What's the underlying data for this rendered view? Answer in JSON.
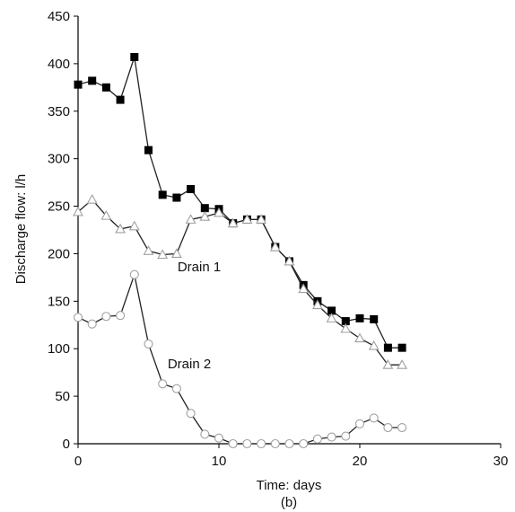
{
  "chart_data": {
    "type": "line",
    "title": "",
    "caption": "(b)",
    "xlabel": "Time: days",
    "ylabel": "Discharge flow: l/h",
    "xlim": [
      0,
      30
    ],
    "ylim": [
      0,
      450
    ],
    "xticks": [
      0,
      10,
      20,
      30
    ],
    "yticks": [
      0,
      50,
      100,
      150,
      200,
      250,
      300,
      350,
      400,
      450
    ],
    "grid": false,
    "legend": "none",
    "annotations": [
      {
        "text": "Drain 1",
        "series": "Drain 1"
      },
      {
        "text": "Drain 2",
        "series": "Drain 2"
      }
    ],
    "series": [
      {
        "name": "",
        "marker": "filled-square",
        "color": "#000000",
        "x": [
          0,
          1,
          2,
          3,
          4,
          5,
          6,
          7,
          8,
          9,
          10,
          11,
          12,
          13,
          14,
          15,
          16,
          17,
          18,
          19,
          20,
          21,
          22,
          23
        ],
        "y": [
          378,
          382,
          375,
          362,
          407,
          309,
          262,
          259,
          268,
          248,
          247,
          232,
          236,
          236,
          207,
          192,
          167,
          150,
          140,
          129,
          132,
          131,
          101,
          101
        ]
      },
      {
        "name": "Drain 1",
        "marker": "open-triangle",
        "color": "#a0a0a0",
        "x": [
          0,
          1,
          2,
          3,
          4,
          5,
          6,
          7,
          8,
          9,
          10,
          11,
          12,
          13,
          14,
          15,
          16,
          17,
          18,
          19,
          20,
          21,
          22,
          23
        ],
        "y": [
          244,
          257,
          240,
          226,
          229,
          203,
          199,
          200,
          236,
          239,
          243,
          232,
          236,
          236,
          207,
          192,
          163,
          146,
          132,
          121,
          111,
          103,
          83,
          83
        ]
      },
      {
        "name": "Drain 2",
        "marker": "open-circle",
        "color": "#a0a0a0",
        "x": [
          0,
          1,
          2,
          3,
          4,
          5,
          6,
          7,
          8,
          9,
          10,
          11,
          12,
          13,
          14,
          15,
          16,
          17,
          18,
          19,
          20,
          21,
          22,
          23
        ],
        "y": [
          133,
          126,
          134,
          135,
          178,
          105,
          63,
          58,
          32,
          10,
          6,
          0,
          0,
          0,
          0,
          0,
          0,
          5,
          7,
          8,
          21,
          27,
          17,
          17
        ]
      }
    ]
  }
}
